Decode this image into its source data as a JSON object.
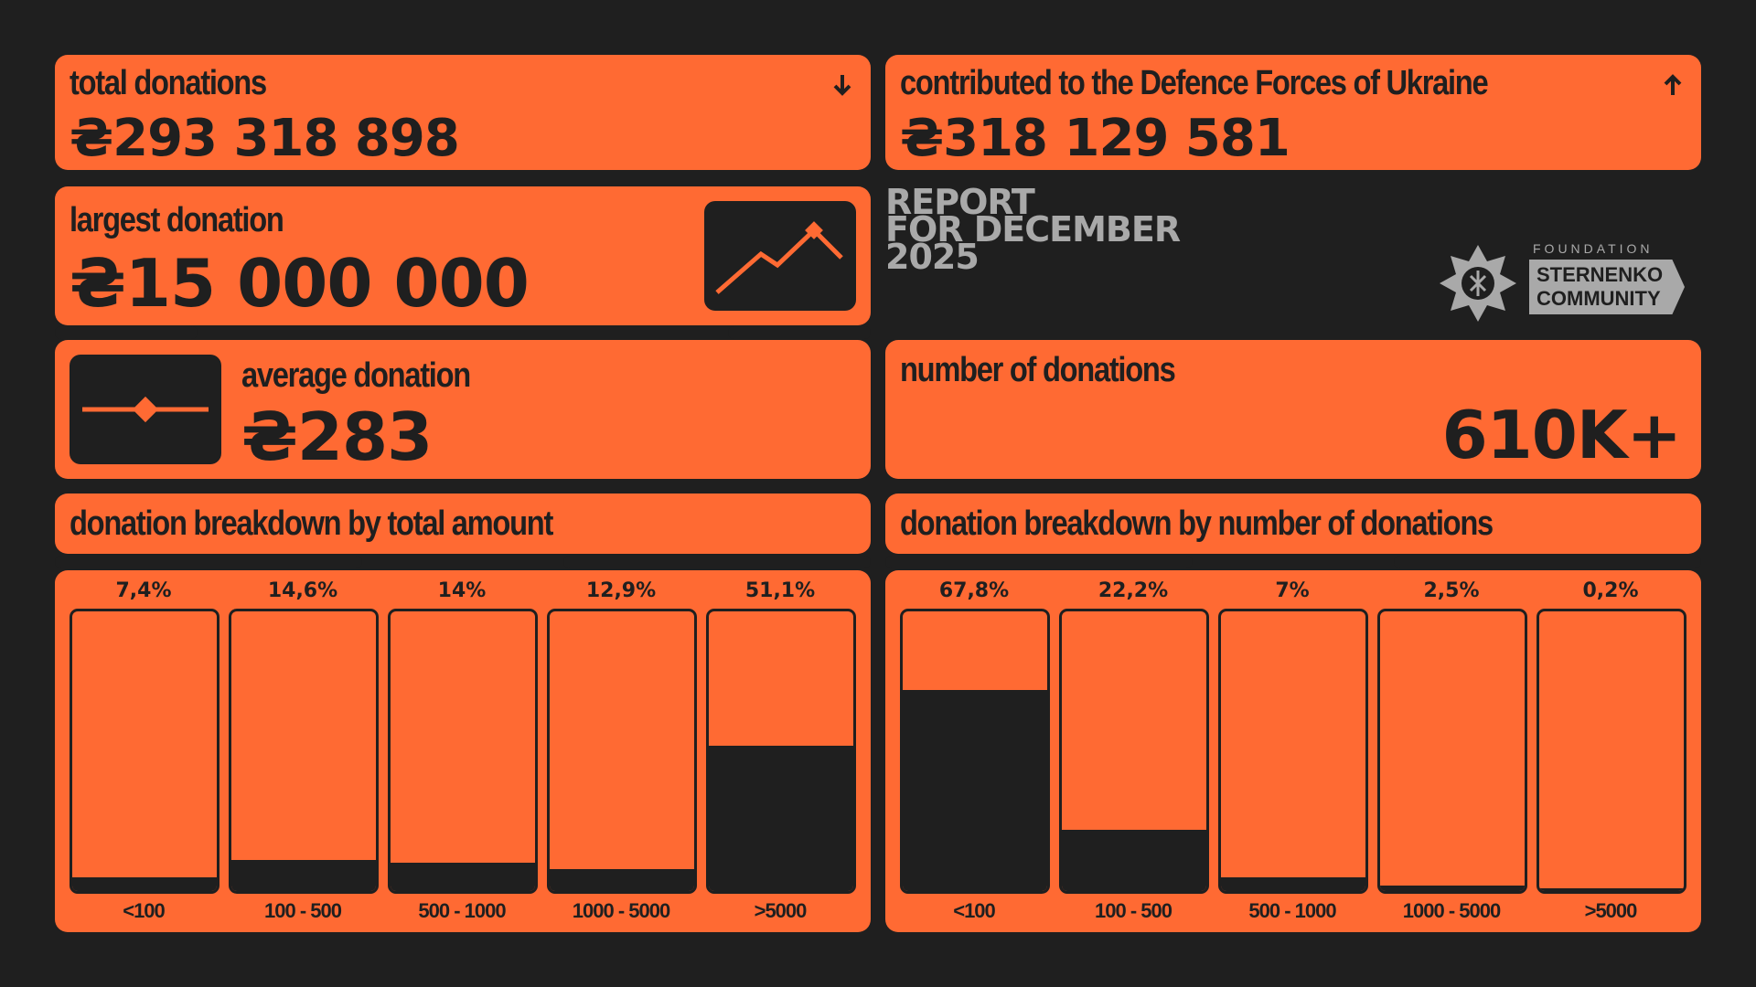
{
  "header": {
    "report_lines": [
      "REPORT",
      "FOR DECEMBER",
      "2025"
    ],
    "logo": {
      "foundation": "FOUNDATION",
      "line1": "STERNENKO",
      "line2": "COMMUNITY"
    }
  },
  "total_donations": {
    "label": "total donations",
    "value": "₴293 318 898",
    "icon": "arrow-down-icon"
  },
  "contributed": {
    "label": "contributed to the Defence Forces of Ukraine",
    "value": "₴318 129 581",
    "icon": "arrow-up-icon"
  },
  "largest_donation": {
    "label": "largest donation",
    "value": "₴15 000 000",
    "icon": "line-chart-icon"
  },
  "average_donation": {
    "label": "average donation",
    "value": "₴283",
    "icon": "slider-icon"
  },
  "number_of_donations": {
    "label": "number of donations",
    "value": "610K+"
  },
  "colors": {
    "accent": "#ff6a33",
    "background": "#1f1f1f",
    "muted": "#a9a9a9"
  },
  "chart_data": [
    {
      "type": "bar",
      "title": "donation breakdown by total amount",
      "categories": [
        "<100",
        "100 - 500",
        "500 - 1000",
        "1000 - 5000",
        ">5000"
      ],
      "values": [
        7.4,
        14.6,
        14,
        12.9,
        51.1
      ],
      "labels": [
        "7,4%",
        "14,6%",
        "14%",
        "12,9%",
        "51,1%"
      ],
      "fill_fraction": [
        0.05,
        0.11,
        0.1,
        0.08,
        0.52
      ],
      "unit": "%",
      "ylim": [
        0,
        100
      ]
    },
    {
      "type": "bar",
      "title": "donation breakdown by number of donations",
      "categories": [
        "<100",
        "100 - 500",
        "500 - 1000",
        "1000 - 5000",
        ">5000"
      ],
      "values": [
        67.8,
        22.2,
        7,
        2.5,
        0.2
      ],
      "labels": [
        "67,8%",
        "22,2%",
        "7%",
        "2,5%",
        "0,2%"
      ],
      "fill_fraction": [
        0.72,
        0.22,
        0.05,
        0.02,
        0.004
      ],
      "unit": "%",
      "ylim": [
        0,
        100
      ]
    }
  ]
}
